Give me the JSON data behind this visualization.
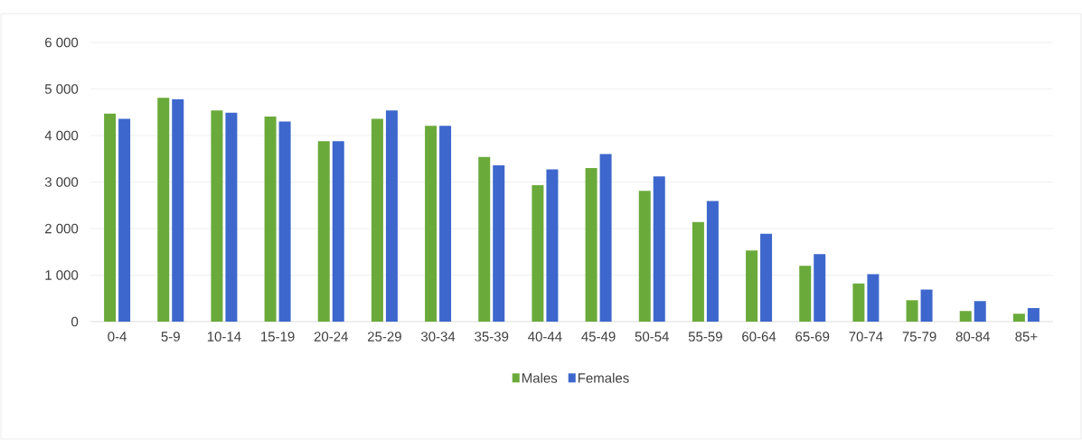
{
  "chart_data": {
    "type": "bar",
    "categories": [
      "0-4",
      "5-9",
      "10-14",
      "15-19",
      "20-24",
      "25-29",
      "30-34",
      "35-39",
      "40-44",
      "45-49",
      "50-54",
      "55-59",
      "60-64",
      "65-69",
      "70-74",
      "75-79",
      "80-84",
      "85+"
    ],
    "series": [
      {
        "name": "Males",
        "color": "#6aaa3a",
        "values": [
          4470,
          4810,
          4540,
          4410,
          3880,
          4360,
          4210,
          3540,
          2930,
          3300,
          2810,
          2140,
          1530,
          1200,
          820,
          460,
          230,
          170
        ]
      },
      {
        "name": "Females",
        "color": "#3d67cc",
        "values": [
          4360,
          4780,
          4490,
          4300,
          3880,
          4540,
          4210,
          3360,
          3270,
          3600,
          3120,
          2590,
          1890,
          1450,
          1020,
          690,
          440,
          290
        ]
      }
    ],
    "ylim": [
      0,
      6000
    ],
    "yticks": [
      {
        "value": 0,
        "label": "0"
      },
      {
        "value": 1000,
        "label": "1 000"
      },
      {
        "value": 2000,
        "label": "2 000"
      },
      {
        "value": 3000,
        "label": "3 000"
      },
      {
        "value": 4000,
        "label": "4 000"
      },
      {
        "value": 5000,
        "label": "5 000"
      },
      {
        "value": 6000,
        "label": "6 000"
      }
    ],
    "grid": "y",
    "legend": "bottom"
  }
}
